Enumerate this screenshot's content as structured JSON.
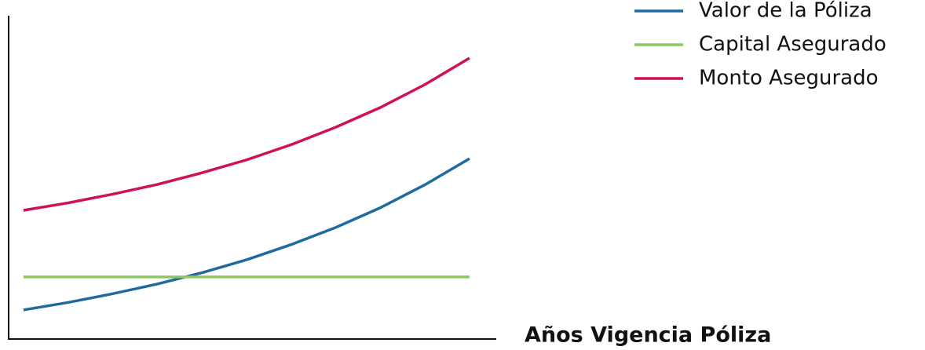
{
  "chart_data": {
    "type": "line",
    "x_label": "Años Vigencia Póliza",
    "x": [
      0,
      1,
      2,
      3,
      4,
      5,
      6,
      7,
      8,
      9,
      10
    ],
    "xlim": [
      -0.35,
      10.6
    ],
    "ylim": [
      0,
      100
    ],
    "series": [
      {
        "name": "Valor de la Póliza",
        "color": "#1f6b9e",
        "values": [
          9,
          11.3,
          14.0,
          17.0,
          20.5,
          24.5,
          29.2,
          34.5,
          40.6,
          47.7,
          55.8
        ]
      },
      {
        "name": "Capital Asegurado",
        "color": "#8cc862",
        "values": [
          19.2,
          19.2,
          19.2,
          19.2,
          19.2,
          19.2,
          19.2,
          19.2,
          19.2,
          19.2,
          19.2
        ]
      },
      {
        "name": "Monto Asegurado",
        "color": "#d0105a",
        "values": [
          39.8,
          42.1,
          44.8,
          47.8,
          51.4,
          55.4,
          60.1,
          65.5,
          71.6,
          78.7,
          86.9
        ]
      }
    ]
  }
}
